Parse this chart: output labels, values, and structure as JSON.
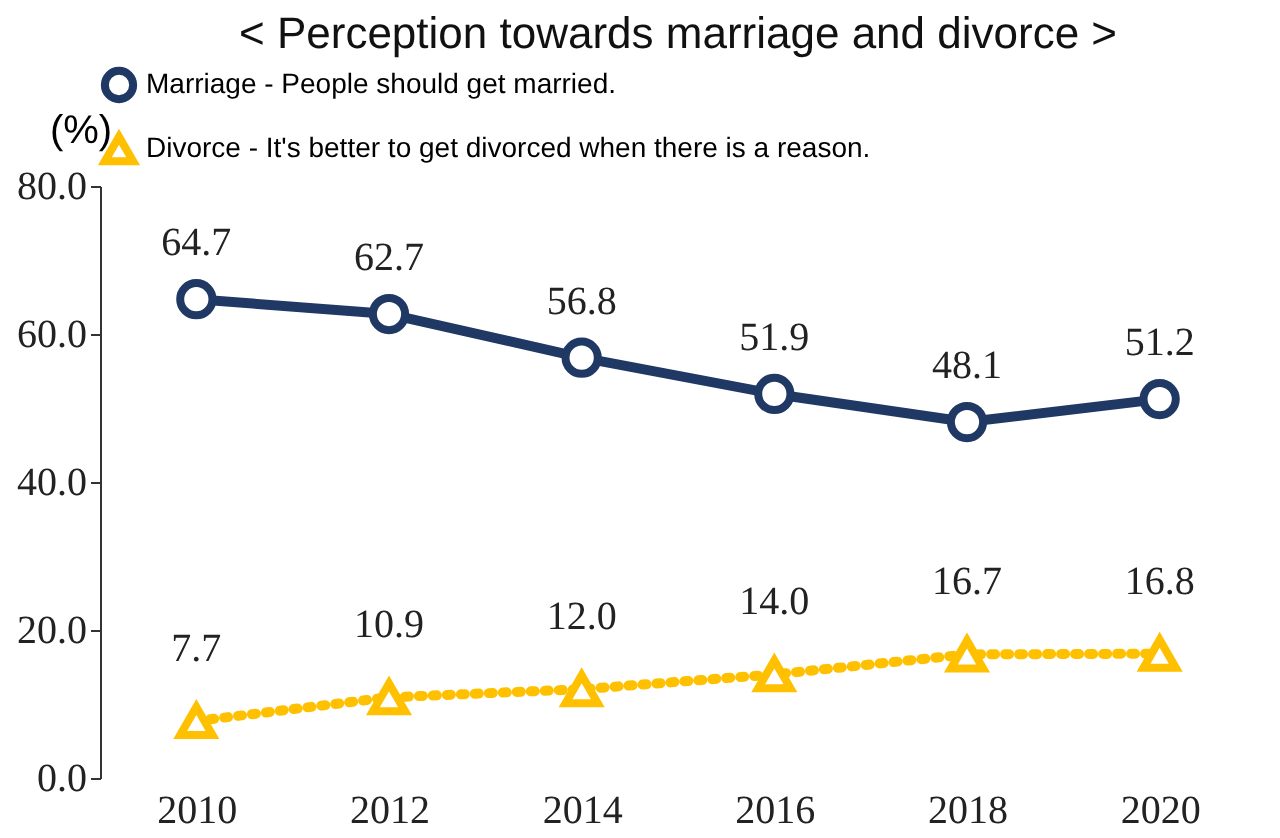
{
  "chart_data": {
    "type": "line",
    "title": "< Perception towards marriage and divorce >",
    "ylabel": "(%)",
    "categories": [
      "2010",
      "2012",
      "2014",
      "2016",
      "2018",
      "2020"
    ],
    "series": [
      {
        "name": "Marriage - People should get married.",
        "color": "#1f3864",
        "values": [
          64.7,
          62.7,
          56.8,
          51.9,
          48.1,
          51.2
        ],
        "value_labels": [
          "64.7",
          "62.7",
          "56.8",
          "51.9",
          "48.1",
          "51.2"
        ],
        "marker": "circle",
        "line_style": "solid"
      },
      {
        "name": "Divorce - It's better to get divorced when there is a reason.",
        "color": "#ffc000",
        "values": [
          7.7,
          10.9,
          12.0,
          14.0,
          16.7,
          16.8
        ],
        "value_labels": [
          "7.7",
          "10.9",
          "12.0",
          "14.0",
          "16.7",
          "16.8"
        ],
        "marker": "triangle",
        "line_style": "dotted"
      }
    ],
    "ylim": [
      0,
      80
    ],
    "yticks": [
      {
        "value": 0,
        "label": "0.0"
      },
      {
        "value": 20,
        "label": "20.0"
      },
      {
        "value": 40,
        "label": "40.0"
      },
      {
        "value": 60,
        "label": "60.0"
      },
      {
        "value": 80,
        "label": "80.0"
      }
    ],
    "grid": false,
    "legend": "top"
  }
}
